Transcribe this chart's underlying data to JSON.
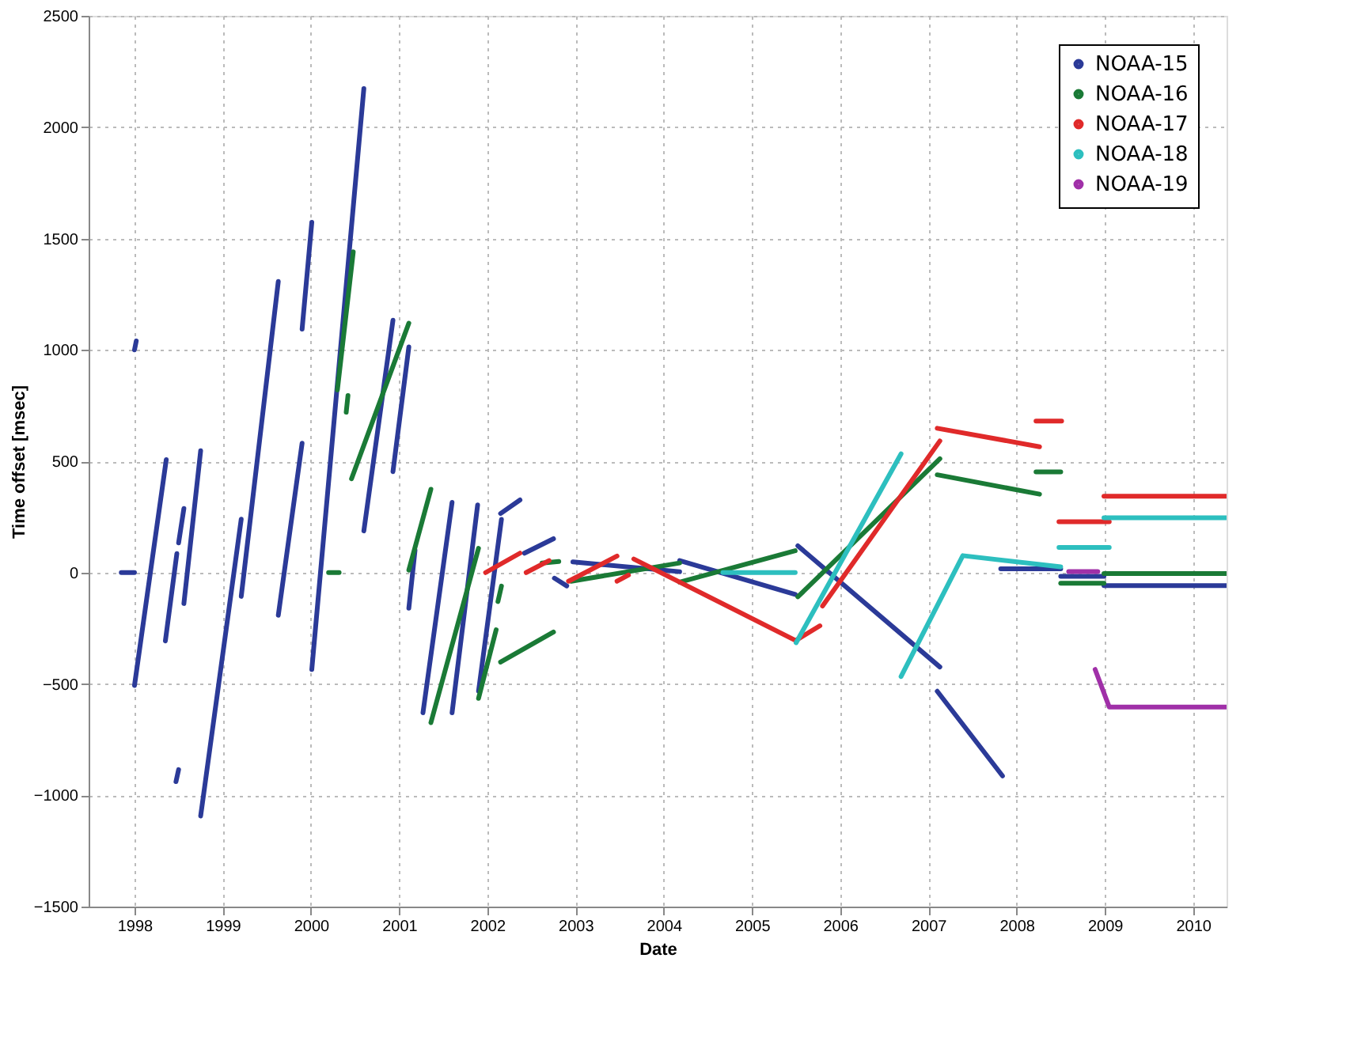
{
  "chart_data": {
    "type": "line",
    "xlabel": "Date",
    "ylabel": "Time offset [msec]",
    "xlim": [
      1997.48,
      2010.38
    ],
    "xticks": [
      1998,
      1999,
      2000,
      2001,
      2002,
      2003,
      2004,
      2005,
      2006,
      2007,
      2008,
      2009,
      2010
    ],
    "ylim": [
      -1500,
      2500
    ],
    "yticks": [
      -1500,
      -1000,
      -500,
      0,
      500,
      1000,
      1500,
      2000,
      2500
    ],
    "grid": true,
    "legend": "top right",
    "marker": "none",
    "line_style": "solid",
    "series": [
      {
        "name": "NOAA-15",
        "color": "#2b3a98",
        "x": [
          1997.85,
          1998.0,
          null,
          1998.0,
          1998.02,
          null,
          1998.0,
          1998.36,
          null,
          1998.35,
          1998.48,
          null,
          1998.5,
          1998.56,
          null,
          1998.47,
          1998.5,
          null,
          1998.56,
          1998.75,
          null,
          1998.75,
          1999.21,
          null,
          1999.21,
          1999.63,
          null,
          1999.63,
          1999.9,
          null,
          1999.9,
          2000.01,
          null,
          2000.01,
          2000.6,
          null,
          2000.6,
          2000.93,
          null,
          2000.93,
          2001.11,
          null,
          2001.11,
          2001.18,
          null,
          2001.27,
          2001.6,
          null,
          2001.6,
          2001.89,
          null,
          2001.9,
          2002.16,
          null,
          2002.15,
          2002.37,
          null,
          2002.42,
          2002.75,
          null,
          2002.76,
          2002.9,
          null,
          2002.97,
          2004.18,
          null,
          2004.18,
          2005.49,
          null,
          2005.52,
          2007.13,
          null,
          2007.1,
          2007.84,
          null,
          2007.82,
          2008.5,
          null,
          2008.5,
          2008.99,
          null,
          2008.99,
          2010.38
        ],
        "values": [
          0,
          0,
          null,
          1000,
          1040,
          null,
          -507,
          507,
          null,
          -307,
          85,
          null,
          133,
          288,
          null,
          -939,
          -885,
          null,
          -139,
          547,
          null,
          -1093,
          240,
          null,
          -107,
          1307,
          null,
          -192,
          581,
          null,
          1093,
          1573,
          null,
          -435,
          2173,
          null,
          187,
          1133,
          null,
          453,
          1013,
          null,
          -160,
          100,
          null,
          -630,
          315,
          null,
          -630,
          304,
          null,
          -533,
          239,
          null,
          265,
          326,
          null,
          87,
          152,
          null,
          -25,
          -60,
          null,
          48,
          4,
          null,
          54,
          -98,
          null,
          120,
          -424,
          null,
          -533,
          -913,
          null,
          17,
          17,
          null,
          -17,
          -17,
          null,
          -59,
          -59
        ]
      },
      {
        "name": "NOAA-16",
        "color": "#1a7a36",
        "x": [
          2000.2,
          2000.32,
          null,
          2000.3,
          2000.48,
          null,
          2000.4,
          2000.42,
          null,
          2000.46,
          2001.11,
          null,
          2001.11,
          2001.36,
          null,
          2001.36,
          2001.9,
          null,
          2001.9,
          2002.1,
          null,
          2002.12,
          2002.16,
          null,
          2002.15,
          2002.75,
          null,
          2002.62,
          2002.81,
          null,
          2002.95,
          2004.18,
          null,
          2004.18,
          2005.49,
          null,
          2005.52,
          2007.13,
          null,
          2007.1,
          2008.26,
          null,
          2008.22,
          2008.5,
          null,
          2008.5,
          2008.99,
          null,
          2008.99,
          2010.38
        ],
        "values": [
          0,
          0,
          null,
          820,
          1440,
          null,
          720,
          795,
          null,
          421,
          1120,
          null,
          11,
          374,
          null,
          -674,
          109,
          null,
          -565,
          -257,
          null,
          -130,
          -61,
          null,
          -402,
          -267,
          null,
          43,
          50,
          null,
          -39,
          43,
          null,
          -43,
          98,
          null,
          -109,
          511,
          null,
          439,
          352,
          null,
          452,
          452,
          null,
          -48,
          -48,
          null,
          -4,
          -4
        ]
      },
      {
        "name": "NOAA-17",
        "color": "#e02a2a",
        "x": [
          2001.98,
          2002.37,
          null,
          2002.44,
          2002.7,
          null,
          2002.92,
          2003.47,
          null,
          2003.47,
          2003.6,
          null,
          2003.66,
          2005.49,
          null,
          2005.5,
          2005.77,
          null,
          2005.8,
          2007.13,
          null,
          2007.1,
          2008.26,
          null,
          2008.22,
          2008.51,
          null,
          2008.48,
          2009.05,
          null,
          2008.99,
          2010.38
        ],
        "values": [
          0,
          87,
          null,
          0,
          54,
          null,
          -39,
          74,
          null,
          -39,
          -11,
          null,
          61,
          -304,
          null,
          -304,
          -239,
          null,
          -150,
          591,
          null,
          648,
          565,
          null,
          680,
          680,
          null,
          228,
          228,
          null,
          343,
          343
        ]
      },
      {
        "name": "NOAA-18",
        "color": "#2dbfbf",
        "x": [
          2004.67,
          2005.49,
          null,
          2005.5,
          2006.69,
          null,
          2006.69,
          2007.39,
          2008.5,
          null,
          2008.48,
          2009.05,
          null,
          2008.99,
          2010.38
        ],
        "values": [
          0,
          0,
          null,
          -315,
          533,
          null,
          -467,
          76,
          26,
          null,
          113,
          113,
          null,
          246,
          246
        ]
      },
      {
        "name": "NOAA-19",
        "color": "#a030a8",
        "x": [
          2008.59,
          2008.92,
          null,
          2008.89,
          2009.05,
          2010.38
        ],
        "values": [
          4,
          4,
          null,
          -435,
          -604,
          -604
        ]
      }
    ]
  }
}
